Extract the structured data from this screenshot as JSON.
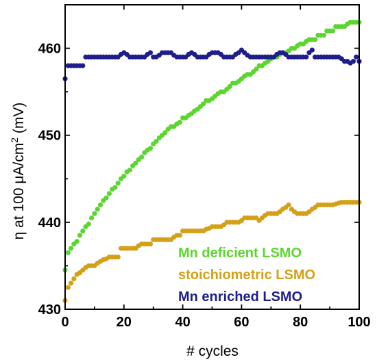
{
  "chart_data": {
    "type": "scatter",
    "xlabel": "# cycles",
    "ylabel": "η at 100 μA/cm² (mV)",
    "ylabel_parts": {
      "main": "η at 100 μA/cm",
      "sup": "2",
      "unit": " (mV)"
    },
    "xlim": [
      0,
      100
    ],
    "ylim": [
      430,
      465
    ],
    "xticks": [
      0,
      20,
      40,
      60,
      80,
      100
    ],
    "yticks": [
      430,
      440,
      450,
      460
    ],
    "grid": false,
    "legend_position": "bottom-right",
    "series": [
      {
        "name": "Mn deficient LSMO",
        "color": "#5ad62e",
        "x": [
          0,
          1,
          2,
          3,
          4,
          5,
          6,
          7,
          8,
          9,
          10,
          11,
          12,
          13,
          14,
          15,
          16,
          17,
          18,
          19,
          20,
          21,
          22,
          23,
          24,
          25,
          26,
          27,
          28,
          29,
          30,
          31,
          32,
          33,
          34,
          35,
          36,
          37,
          38,
          39,
          40,
          41,
          42,
          43,
          44,
          45,
          46,
          47,
          48,
          49,
          50,
          51,
          52,
          53,
          54,
          55,
          56,
          57,
          58,
          59,
          60,
          61,
          62,
          63,
          64,
          65,
          66,
          67,
          68,
          69,
          70,
          71,
          72,
          73,
          74,
          75,
          76,
          77,
          78,
          79,
          80,
          81,
          82,
          83,
          84,
          85,
          86,
          87,
          88,
          89,
          90,
          91,
          92,
          93,
          94,
          95,
          96,
          97,
          98,
          99,
          100
        ],
        "y": [
          434.5,
          436.5,
          437,
          437.5,
          437.8,
          438.5,
          439,
          439.5,
          439.8,
          440.5,
          441,
          441.5,
          442,
          442.5,
          442.8,
          443.3,
          443.8,
          444,
          444.5,
          445,
          445.3,
          445.8,
          446,
          446.5,
          446.8,
          447.2,
          447.5,
          448,
          448.3,
          448.5,
          449,
          449.3,
          449.7,
          450,
          450.3,
          450.7,
          451,
          451,
          451.3,
          451.5,
          452,
          452,
          452.3,
          452.5,
          452.8,
          453,
          453.3,
          453.6,
          454,
          454,
          454.2,
          454.5,
          454.8,
          455,
          455,
          455.3,
          455.6,
          456,
          456,
          456.2,
          456.5,
          456.8,
          457,
          457,
          457.3,
          457.6,
          458,
          458,
          458.3,
          458.5,
          458.8,
          459,
          459,
          459.3,
          459.5,
          459.5,
          459.7,
          460,
          460,
          460.3,
          460.5,
          460.5,
          460.8,
          461,
          461,
          461,
          461.5,
          461.5,
          461.5,
          462,
          462,
          462,
          462.5,
          462.5,
          462.5,
          462.5,
          462.8,
          463,
          463,
          463,
          463
        ]
      },
      {
        "name": "stoichiometric LSMO",
        "color": "#d4a017",
        "x": [
          0,
          1,
          2,
          3,
          4,
          5,
          6,
          7,
          8,
          9,
          10,
          11,
          12,
          13,
          14,
          15,
          16,
          17,
          18,
          19,
          20,
          21,
          22,
          23,
          24,
          25,
          26,
          27,
          28,
          29,
          30,
          31,
          32,
          33,
          34,
          35,
          36,
          37,
          38,
          39,
          40,
          41,
          42,
          43,
          44,
          45,
          46,
          47,
          48,
          49,
          50,
          51,
          52,
          53,
          54,
          55,
          56,
          57,
          58,
          59,
          60,
          61,
          62,
          63,
          64,
          65,
          66,
          67,
          68,
          69,
          70,
          71,
          72,
          73,
          74,
          75,
          76,
          77,
          78,
          79,
          80,
          81,
          82,
          83,
          84,
          85,
          86,
          87,
          88,
          89,
          90,
          91,
          92,
          93,
          94,
          95,
          96,
          97,
          98,
          99,
          100
        ],
        "y": [
          431,
          432.5,
          433,
          433.5,
          434,
          434.2,
          434.5,
          434.8,
          435,
          435,
          435,
          435.3,
          435.5,
          435.7,
          435.8,
          436,
          436,
          436,
          436,
          437,
          437,
          437,
          437,
          437,
          437,
          437.3,
          437.5,
          437.5,
          437.5,
          437.5,
          438,
          438,
          438,
          438,
          438,
          438,
          438,
          438.3,
          438.5,
          438.5,
          439,
          439,
          439,
          439,
          439,
          439,
          439,
          439,
          439.2,
          439.3,
          439.5,
          439.5,
          439.5,
          439.5,
          439.7,
          440,
          440,
          440,
          440,
          440,
          440.2,
          440.5,
          440.5,
          440.5,
          440.5,
          440.5,
          440.2,
          440.5,
          440.8,
          441,
          441,
          441,
          441,
          441.2,
          441.5,
          441.7,
          442,
          441.5,
          441.2,
          441,
          441,
          441,
          441,
          441.2,
          441.5,
          441.7,
          442,
          442,
          442,
          442,
          442,
          442,
          442.1,
          442.2,
          442.3,
          442.3,
          442.3,
          442.3,
          442.3,
          442.3,
          442.3
        ]
      },
      {
        "name": "Mn enriched LSMO",
        "color": "#1f1d8c",
        "x": [
          0,
          1,
          2,
          3,
          4,
          5,
          6,
          7,
          8,
          9,
          10,
          11,
          12,
          13,
          14,
          15,
          16,
          17,
          18,
          19,
          20,
          21,
          22,
          23,
          24,
          25,
          26,
          27,
          28,
          29,
          30,
          31,
          32,
          33,
          34,
          35,
          36,
          37,
          38,
          39,
          40,
          41,
          42,
          43,
          44,
          45,
          46,
          47,
          48,
          49,
          50,
          51,
          52,
          53,
          54,
          55,
          56,
          57,
          58,
          59,
          60,
          61,
          62,
          63,
          64,
          65,
          66,
          67,
          68,
          69,
          70,
          71,
          72,
          73,
          74,
          75,
          76,
          77,
          78,
          79,
          80,
          81,
          82,
          83,
          84,
          85,
          86,
          87,
          88,
          89,
          90,
          91,
          92,
          93,
          94,
          95,
          96,
          97,
          98,
          99,
          100
        ],
        "y": [
          456.5,
          458,
          458,
          458,
          458,
          458,
          458,
          459,
          459,
          459,
          459,
          459,
          459,
          459,
          459,
          459,
          459,
          459,
          459,
          459.3,
          459.5,
          459.3,
          459,
          459,
          459,
          459,
          459,
          459,
          459.3,
          459.5,
          459,
          459,
          459.2,
          459.5,
          459.5,
          459.5,
          459.5,
          459.2,
          459,
          459,
          459,
          459,
          459.3,
          459.5,
          459.3,
          459,
          459,
          459,
          459,
          459.3,
          459.5,
          459.5,
          459.5,
          459.3,
          459,
          459,
          459,
          459,
          459.3,
          459.5,
          459.8,
          459.5,
          459.2,
          459,
          459,
          459,
          459,
          459,
          459,
          459,
          459,
          459,
          459.3,
          459.5,
          459.5,
          459.3,
          459,
          459,
          459,
          459,
          459,
          459,
          459,
          459.5,
          459.8,
          459,
          459,
          459,
          459,
          459,
          459,
          459,
          459,
          459,
          458.8,
          458.5,
          458.5,
          458.3,
          458.5,
          459,
          458.5
        ]
      }
    ]
  }
}
